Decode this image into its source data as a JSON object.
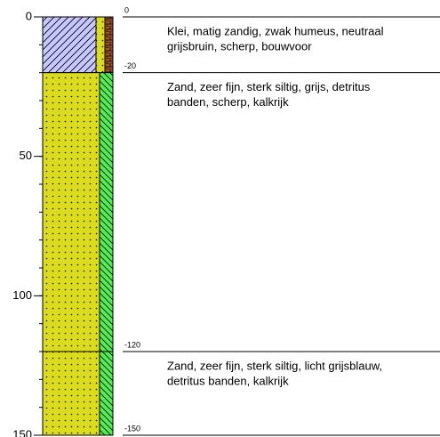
{
  "depth_axis": {
    "ylim": [
      0,
      150
    ],
    "ticks": [
      0,
      50,
      100,
      150
    ],
    "minor_ticks": [
      0,
      10,
      20,
      30,
      40,
      50,
      60,
      70,
      80,
      90,
      100,
      110,
      120,
      130,
      140,
      150
    ]
  },
  "boundaries": [
    {
      "value": 0,
      "label": "0"
    },
    {
      "value": 20,
      "label": "-20"
    },
    {
      "value": 120,
      "label": "-120"
    },
    {
      "value": 150,
      "label": "-150"
    }
  ],
  "layers": [
    {
      "top": 0,
      "bottom": 20,
      "description": [
        "Klei, matig zandig, zwak humeus, neutraal",
        "grijsbruin, scherp, bouwvoor"
      ]
    },
    {
      "top": 20,
      "bottom": 120,
      "description": [
        "Zand, zeer fijn, sterk siltig, grijs, detritus",
        "banden, scherp, kalkrijk"
      ]
    },
    {
      "top": 120,
      "bottom": 150,
      "description": [
        "Zand, zeer fijn, sterk siltig, licht grijsblauw,",
        "detritus banden, kalkrijk"
      ]
    }
  ]
}
